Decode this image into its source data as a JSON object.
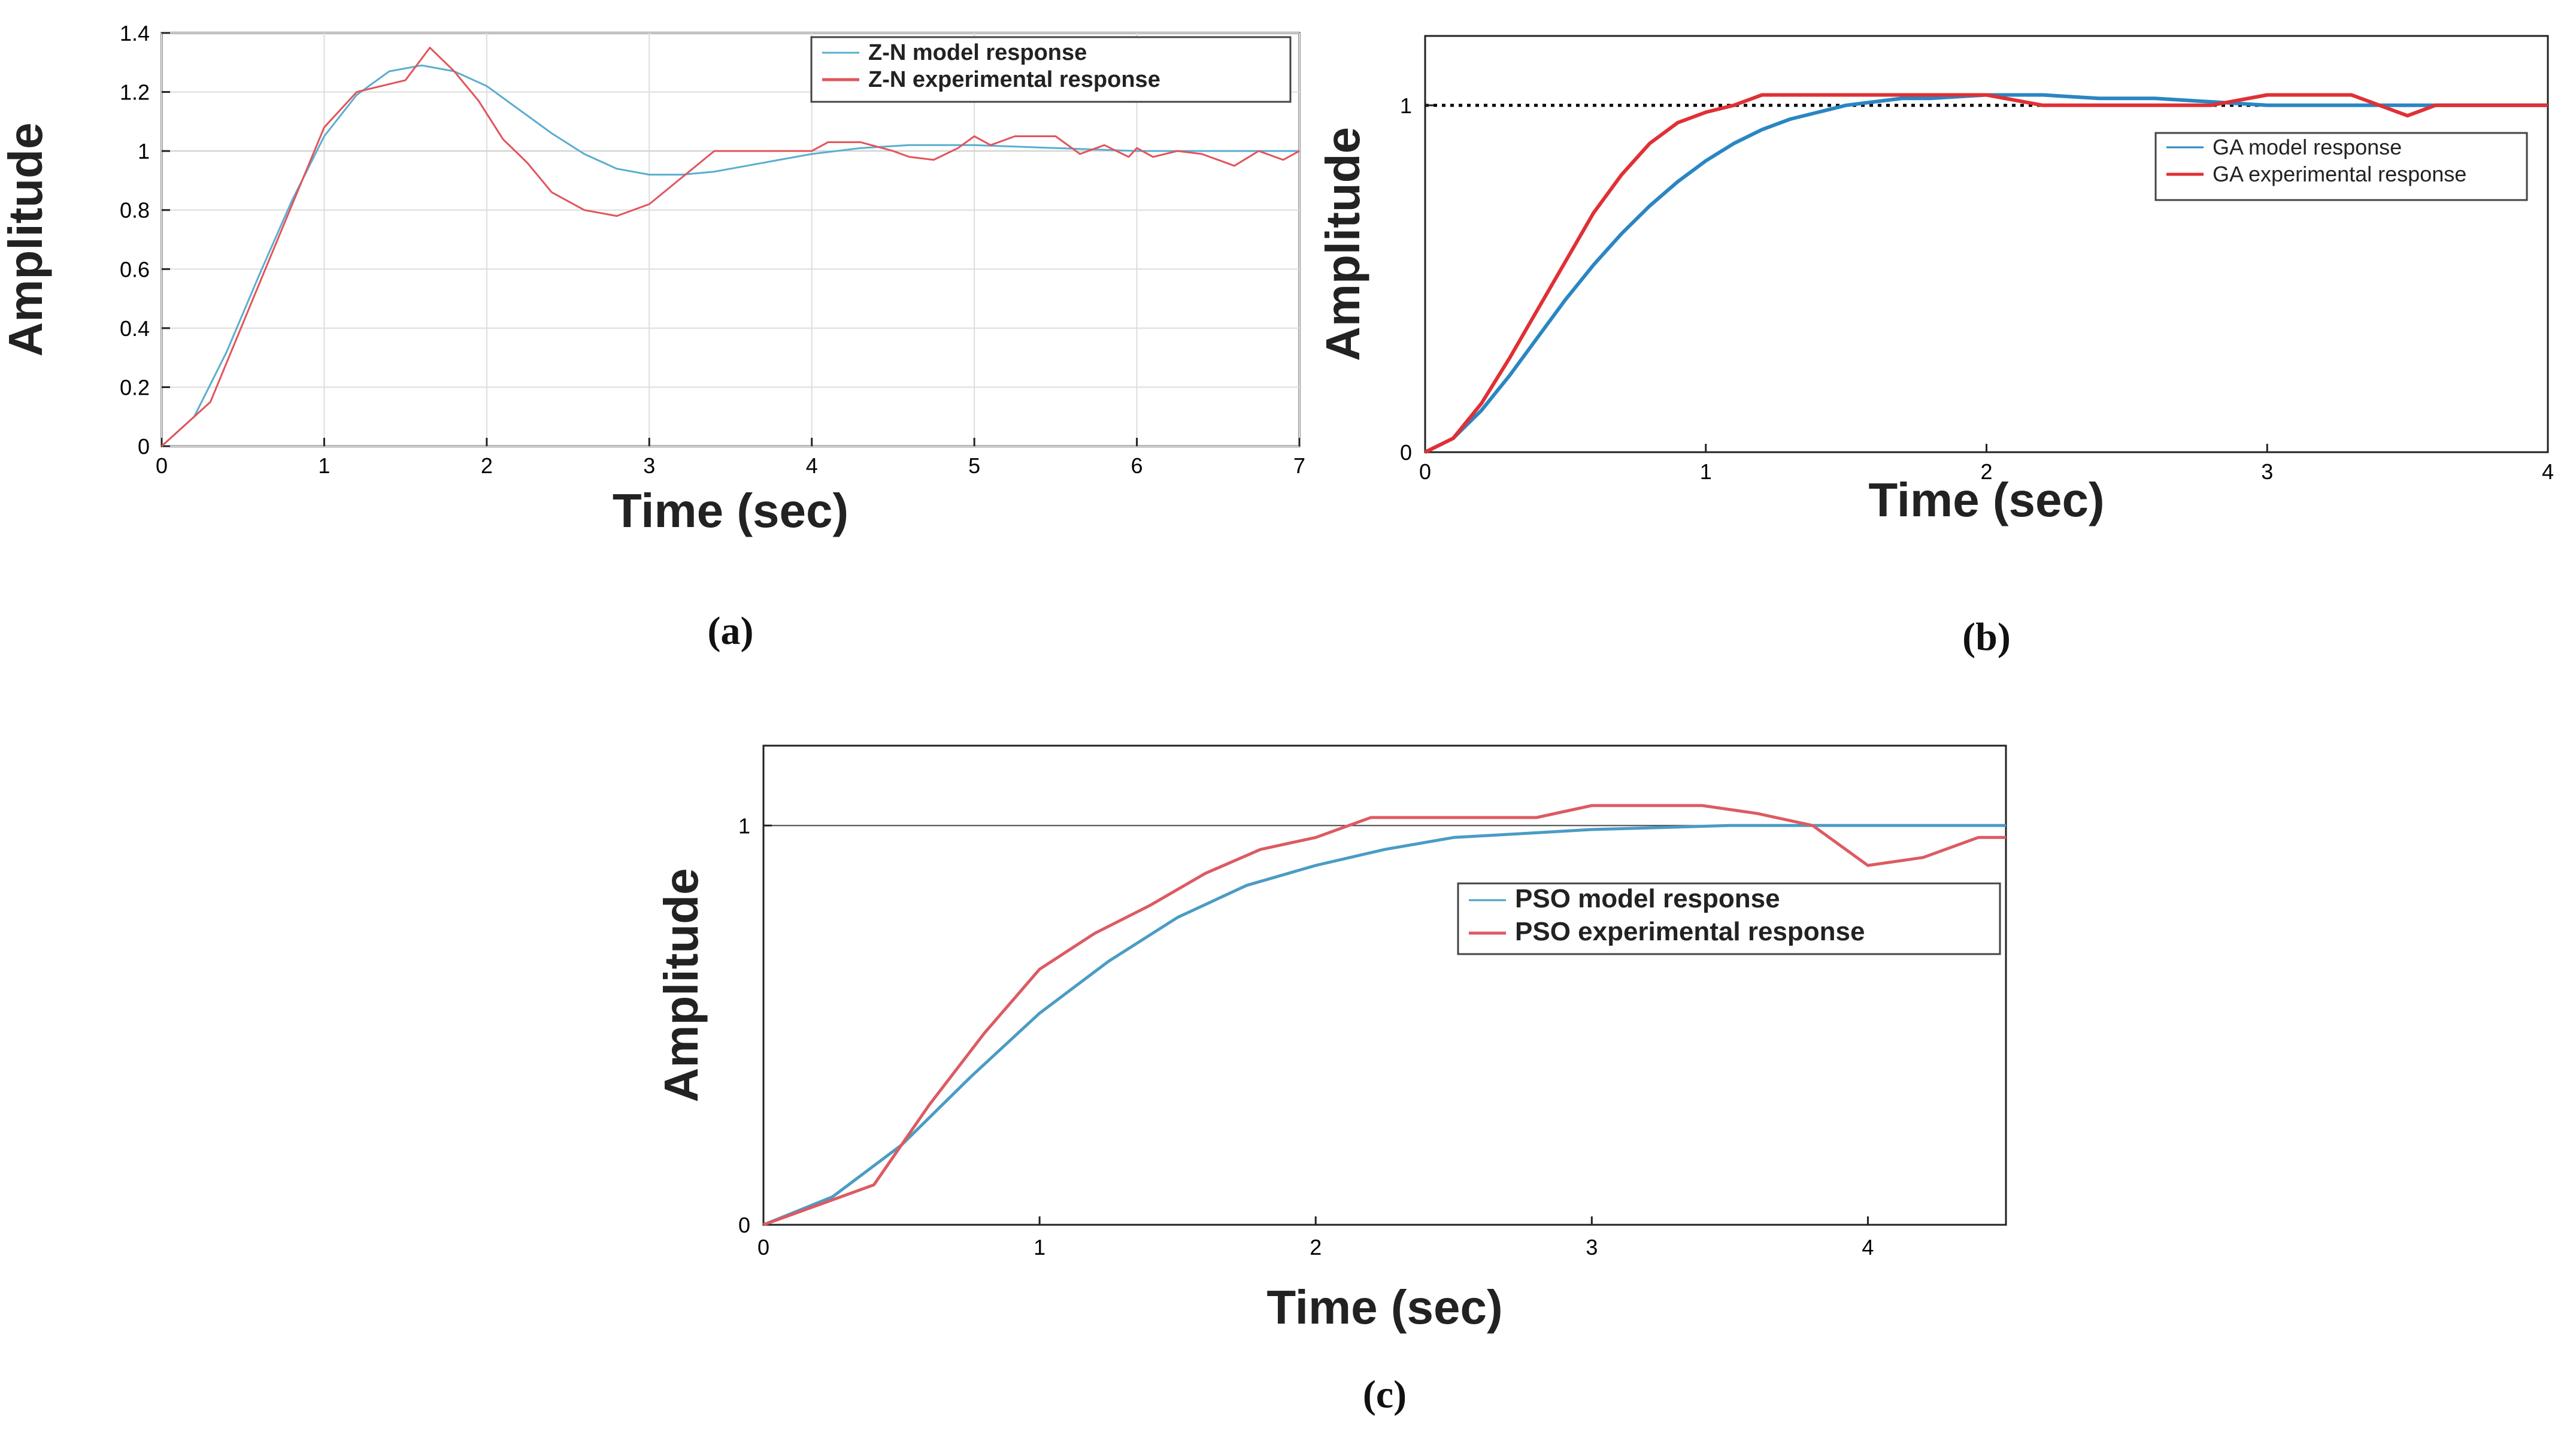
{
  "chart_data": [
    {
      "type": "line",
      "caption": "(a)",
      "xlabel": "Time (sec)",
      "ylabel": "Amplitude",
      "xlim": [
        0,
        7
      ],
      "ylim": [
        0,
        1.4
      ],
      "xticks": [
        0,
        1,
        2,
        3,
        4,
        5,
        6,
        7
      ],
      "yticks": [
        0,
        0.2,
        0.4,
        0.6,
        0.8,
        1,
        1.2,
        1.4
      ],
      "xtick_labels": [
        "0",
        "1",
        "2",
        "3",
        "4",
        "5",
        "6",
        "7"
      ],
      "ytick_labels": [
        "0",
        "0.2",
        "0.4",
        "0.6",
        "0.8",
        "1",
        "1.2",
        "1.4"
      ],
      "reference_line": 1,
      "legend_position": "top-right",
      "series": [
        {
          "name": "Z-N model response",
          "color": "#5aaecf",
          "x": [
            0,
            0.2,
            0.4,
            0.6,
            0.8,
            1.0,
            1.2,
            1.4,
            1.6,
            1.8,
            2.0,
            2.2,
            2.4,
            2.6,
            2.8,
            3.0,
            3.2,
            3.4,
            3.6,
            3.8,
            4.0,
            4.3,
            4.6,
            5.0,
            5.5,
            6.0,
            6.5,
            7.0
          ],
          "y": [
            0,
            0.1,
            0.32,
            0.58,
            0.83,
            1.05,
            1.19,
            1.27,
            1.29,
            1.27,
            1.22,
            1.14,
            1.06,
            0.99,
            0.94,
            0.92,
            0.92,
            0.93,
            0.95,
            0.97,
            0.99,
            1.01,
            1.02,
            1.02,
            1.01,
            1.0,
            1.0,
            1.0
          ]
        },
        {
          "name": "Z-N experimental response",
          "color": "#e2545b",
          "x": [
            0,
            0.3,
            0.6,
            1.0,
            1.2,
            1.5,
            1.65,
            1.8,
            1.95,
            2.1,
            2.25,
            2.4,
            2.6,
            2.8,
            3.0,
            3.2,
            3.4,
            3.7,
            4.0,
            4.1,
            4.3,
            4.5,
            4.6,
            4.75,
            4.9,
            5.0,
            5.1,
            5.25,
            5.5,
            5.65,
            5.8,
            5.95,
            6.0,
            6.1,
            6.25,
            6.4,
            6.6,
            6.75,
            6.9,
            7.0
          ],
          "y": [
            0,
            0.15,
            0.55,
            1.08,
            1.2,
            1.24,
            1.35,
            1.27,
            1.17,
            1.04,
            0.96,
            0.86,
            0.8,
            0.78,
            0.82,
            0.91,
            1.0,
            1.0,
            1.0,
            1.03,
            1.03,
            1.0,
            0.98,
            0.97,
            1.01,
            1.05,
            1.02,
            1.05,
            1.05,
            0.99,
            1.02,
            0.98,
            1.01,
            0.98,
            1.0,
            0.99,
            0.95,
            1.0,
            0.97,
            1.0
          ]
        }
      ]
    },
    {
      "type": "line",
      "caption": "(b)",
      "xlabel": "Time (sec)",
      "ylabel": "Amplitude",
      "xlim": [
        0,
        4
      ],
      "ylim": [
        0,
        1.2
      ],
      "xticks": [
        0,
        1,
        2,
        3,
        4
      ],
      "yticks": [
        0,
        1
      ],
      "xtick_labels": [
        "0",
        "1",
        "2",
        "3",
        "4"
      ],
      "ytick_labels": [
        "0",
        "1"
      ],
      "reference_line": 1,
      "legend_position": "right",
      "series": [
        {
          "name": "GA model response",
          "color": "#2a86c2",
          "x": [
            0,
            0.1,
            0.2,
            0.3,
            0.4,
            0.5,
            0.6,
            0.7,
            0.8,
            0.9,
            1.0,
            1.1,
            1.2,
            1.3,
            1.4,
            1.5,
            1.6,
            1.7,
            1.8,
            2.0,
            2.2,
            2.4,
            2.6,
            2.8,
            3.0,
            3.2,
            3.5,
            3.8,
            4.0
          ],
          "y": [
            0,
            0.04,
            0.12,
            0.22,
            0.33,
            0.44,
            0.54,
            0.63,
            0.71,
            0.78,
            0.84,
            0.89,
            0.93,
            0.96,
            0.98,
            1.0,
            1.01,
            1.02,
            1.02,
            1.03,
            1.03,
            1.02,
            1.02,
            1.01,
            1.0,
            1.0,
            1.0,
            1.0,
            1.0
          ]
        },
        {
          "name": "GA experimental response",
          "color": "#e03035",
          "x": [
            0,
            0.1,
            0.2,
            0.3,
            0.4,
            0.5,
            0.6,
            0.7,
            0.8,
            0.9,
            1.0,
            1.1,
            1.2,
            1.3,
            1.5,
            1.8,
            2.0,
            2.2,
            2.6,
            2.8,
            3.0,
            3.2,
            3.3,
            3.4,
            3.5,
            3.6,
            3.8,
            4.0
          ],
          "y": [
            0,
            0.04,
            0.14,
            0.27,
            0.41,
            0.55,
            0.69,
            0.8,
            0.89,
            0.95,
            0.98,
            1.0,
            1.03,
            1.03,
            1.03,
            1.03,
            1.03,
            1.0,
            1.0,
            1.0,
            1.03,
            1.03,
            1.03,
            1.0,
            0.97,
            1.0,
            1.0,
            1.0
          ]
        }
      ]
    },
    {
      "type": "line",
      "caption": "(c)",
      "xlabel": "Time (sec)",
      "ylabel": "Amplitude",
      "xlim": [
        0,
        4.5
      ],
      "ylim": [
        0,
        1.2
      ],
      "xticks": [
        0,
        1,
        2,
        3,
        4
      ],
      "yticks": [
        0,
        1
      ],
      "xtick_labels": [
        "0",
        "1",
        "2",
        "3",
        "4"
      ],
      "ytick_labels": [
        "0",
        "1"
      ],
      "reference_line": 1,
      "legend_position": "right",
      "series": [
        {
          "name": "PSO model response",
          "color": "#4a9cc4",
          "x": [
            0,
            0.25,
            0.5,
            0.75,
            1.0,
            1.25,
            1.5,
            1.75,
            2.0,
            2.25,
            2.5,
            2.75,
            3.0,
            3.25,
            3.5,
            3.75,
            4.0,
            4.25,
            4.5
          ],
          "y": [
            0,
            0.07,
            0.2,
            0.37,
            0.53,
            0.66,
            0.77,
            0.85,
            0.9,
            0.94,
            0.97,
            0.98,
            0.99,
            0.995,
            1.0,
            1.0,
            1.0,
            1.0,
            1.0
          ]
        },
        {
          "name": "PSO experimental response",
          "color": "#dd5a62",
          "x": [
            0,
            0.2,
            0.4,
            0.6,
            0.8,
            1.0,
            1.2,
            1.4,
            1.6,
            1.8,
            2.0,
            2.2,
            2.4,
            2.6,
            2.8,
            3.0,
            3.2,
            3.4,
            3.6,
            3.8,
            4.0,
            4.2,
            4.4,
            4.5
          ],
          "y": [
            0,
            0.05,
            0.1,
            0.3,
            0.48,
            0.64,
            0.73,
            0.8,
            0.88,
            0.94,
            0.97,
            1.02,
            1.02,
            1.02,
            1.02,
            1.05,
            1.05,
            1.05,
            1.03,
            1.0,
            0.9,
            0.92,
            0.97,
            0.97
          ]
        }
      ]
    }
  ]
}
